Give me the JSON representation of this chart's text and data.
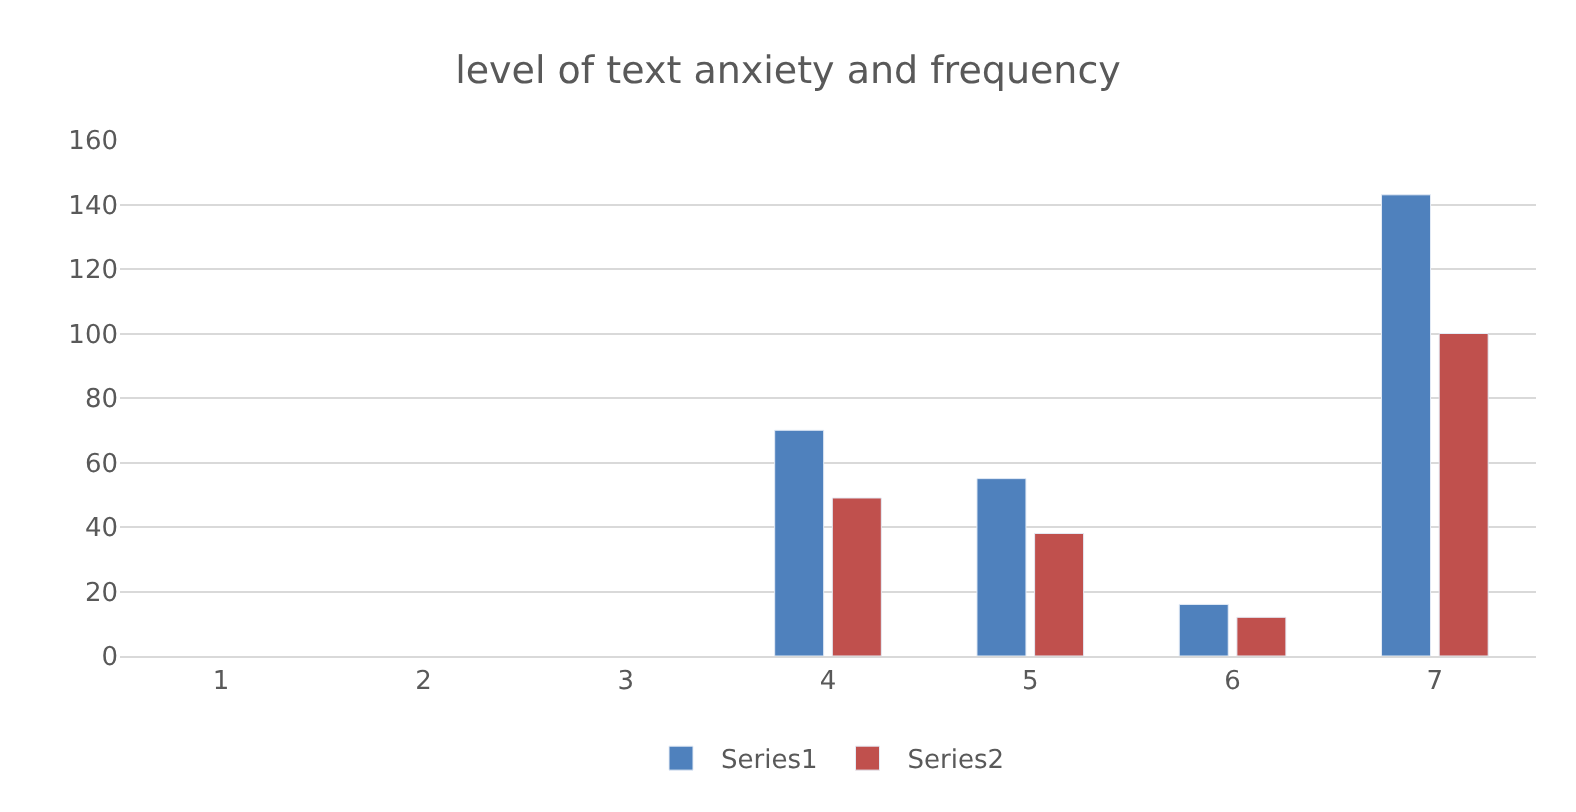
{
  "chart_data": {
    "type": "bar",
    "title": "level of text anxiety and frequency",
    "categories": [
      "1",
      "2",
      "3",
      "4",
      "5",
      "6",
      "7"
    ],
    "series": [
      {
        "name": "Series1",
        "color": "#4f81bd",
        "values": [
          null,
          null,
          null,
          70,
          55,
          16,
          143
        ]
      },
      {
        "name": "Series2",
        "color": "#c0504d",
        "values": [
          null,
          null,
          null,
          49,
          38,
          12,
          100
        ]
      }
    ],
    "ylim": [
      0,
      160
    ],
    "yticks": [
      0,
      20,
      40,
      60,
      80,
      100,
      120,
      140,
      160
    ],
    "grid": "y",
    "legend": "bottom"
  }
}
